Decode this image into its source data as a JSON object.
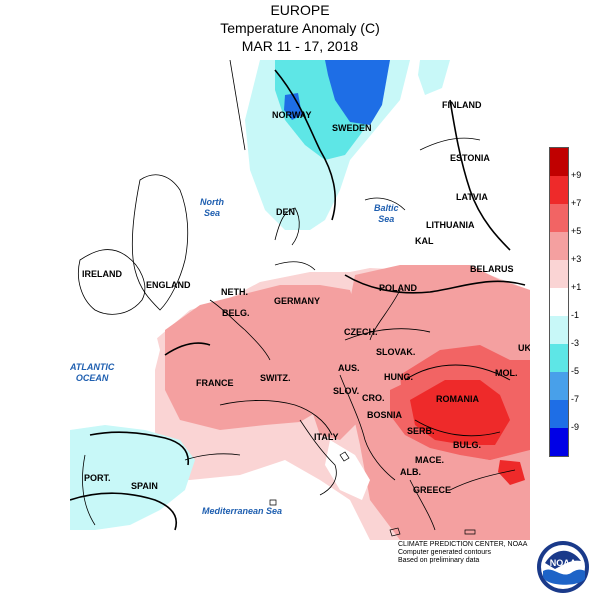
{
  "header": {
    "region": "EUROPE",
    "variable": "Temperature Anomaly (C)",
    "period": "MAR 11 - 17, 2018"
  },
  "countries": [
    "NORWAY",
    "SWEDEN",
    "FINLAND",
    "ESTONIA",
    "LATVIA",
    "LITHUANIA",
    "KAL",
    "BELARUS",
    "DEN",
    "IRELAND",
    "ENGLAND",
    "NETH.",
    "BELG.",
    "GERMANY",
    "POLAND",
    "CZECH.",
    "SLOVAK.",
    "UKR",
    "AUS.",
    "SWITZ.",
    "FRANCE",
    "HUNG.",
    "MOL.",
    "ROMANIA",
    "SLOV.",
    "CRO.",
    "BOSNIA",
    "SERB.",
    "BULG.",
    "MACE.",
    "ALB.",
    "GREECE",
    "ITALY",
    "PORT.",
    "SPAIN"
  ],
  "seas": {
    "north_sea": [
      "North",
      "Sea"
    ],
    "baltic_sea": [
      "Baltic",
      "Sea"
    ],
    "atlantic": [
      "ATLANTIC",
      "OCEAN"
    ],
    "mediterranean": [
      "Mediterranean Sea"
    ]
  },
  "legend": {
    "colors": [
      "#c00000",
      "#ee2a2a",
      "#f26464",
      "#f4a0a0",
      "#fad4d4",
      "#ffffff",
      "#c8f8f8",
      "#5ee6e6",
      "#48a0ea",
      "#1e6ee6",
      "#0000e6"
    ],
    "ticks": [
      "+9",
      "+7",
      "+5",
      "+3",
      "+1",
      "-1",
      "-3",
      "-5",
      "-7",
      "-9"
    ]
  },
  "credit": {
    "line1": "CLIMATE PREDICTION CENTER, NOAA",
    "line2": "Computer generated contours",
    "line3": "Based on preliminary data"
  },
  "logo": {
    "text": "NOAA",
    "icon": "noaa-logo"
  }
}
